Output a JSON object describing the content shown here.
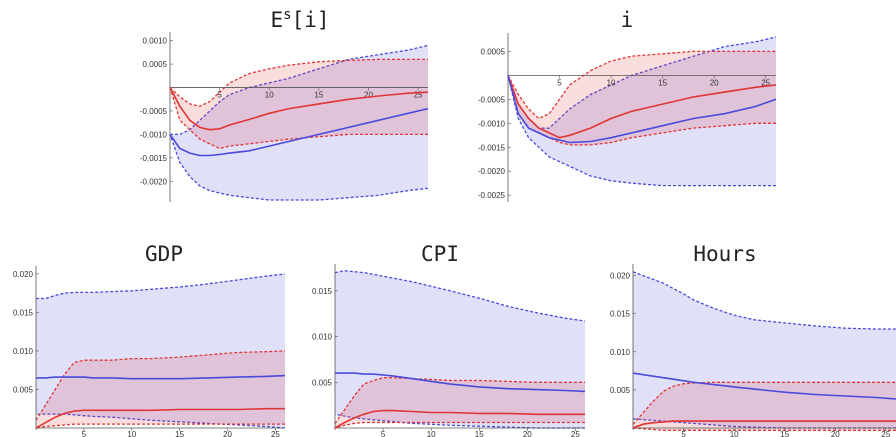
{
  "chart_data": [
    {
      "type": "line",
      "title": "E",
      "title_sup": "s",
      "title_rest": "[i]",
      "xlabel": "",
      "ylabel": "",
      "xlim": [
        0,
        26
      ],
      "ylim": [
        -0.0024,
        0.0011
      ],
      "xticks": [
        5,
        10,
        15,
        20,
        25
      ],
      "yticks": [
        0.001,
        0.0005,
        -0.0005,
        -0.001,
        -0.0015,
        -0.002
      ],
      "ytick_labels": [
        "0.0010",
        "0.0005",
        "-0.0005",
        "-0.0010",
        "-0.0015",
        "-0.0020"
      ],
      "x": [
        0,
        1,
        2,
        3,
        4,
        5,
        6,
        8,
        10,
        12,
        15,
        18,
        21,
        24,
        26
      ],
      "series": [
        {
          "color": "#e03535",
          "values": [
            0,
            -0.0004,
            -0.0007,
            -0.00085,
            -0.0009,
            -0.00088,
            -0.0008,
            -0.00068,
            -0.00055,
            -0.00045,
            -0.00035,
            -0.00025,
            -0.00018,
            -0.00012,
            -0.0001
          ],
          "band_upper": [
            0,
            -0.0002,
            -0.00035,
            -0.0004,
            -0.0003,
            -0.0001,
            0.0001,
            0.0003,
            0.0004,
            0.00048,
            0.00055,
            0.00058,
            0.0006,
            0.0006,
            0.0006
          ],
          "band_lower": [
            0,
            -0.0007,
            -0.0009,
            -0.0011,
            -0.0012,
            -0.0013,
            -0.00125,
            -0.0012,
            -0.00115,
            -0.0011,
            -0.00105,
            -0.001,
            -0.001,
            -0.001,
            -0.001
          ]
        },
        {
          "color": "#4a4adb",
          "values": [
            -0.001,
            -0.0013,
            -0.0014,
            -0.00145,
            -0.00145,
            -0.00143,
            -0.0014,
            -0.00135,
            -0.00125,
            -0.00115,
            -0.001,
            -0.00085,
            -0.0007,
            -0.00055,
            -0.00045
          ],
          "band_upper": [
            -0.001,
            -0.001,
            -0.0009,
            -0.0007,
            -0.0005,
            -0.0003,
            -0.00015,
            0,
            0.0001,
            0.0002,
            0.0004,
            0.0006,
            0.0007,
            0.0008,
            0.0009
          ],
          "band_lower": [
            -0.001,
            -0.0016,
            -0.0019,
            -0.0021,
            -0.0022,
            -0.00225,
            -0.0023,
            -0.00235,
            -0.0024,
            -0.0024,
            -0.0024,
            -0.00235,
            -0.0023,
            -0.0022,
            -0.00215
          ]
        }
      ]
    },
    {
      "type": "line",
      "title": "i",
      "xlabel": "",
      "ylabel": "",
      "xlim": [
        0,
        26
      ],
      "ylim": [
        -0.0026,
        0.0008
      ],
      "xticks": [
        5,
        10,
        15,
        20,
        25
      ],
      "yticks": [
        0.0005,
        -0.0005,
        -0.001,
        -0.0015,
        -0.002,
        -0.0025
      ],
      "ytick_labels": [
        "0.0005",
        "-0.0005",
        "-0.0010",
        "-0.0015",
        "-0.0020",
        "-0.0025"
      ],
      "x": [
        0,
        1,
        2,
        3,
        4,
        5,
        6,
        8,
        10,
        12,
        15,
        18,
        21,
        24,
        26
      ],
      "series": [
        {
          "color": "#e03535",
          "values": [
            0,
            -0.0006,
            -0.0009,
            -0.0011,
            -0.0012,
            -0.0013,
            -0.00125,
            -0.0011,
            -0.0009,
            -0.00075,
            -0.0006,
            -0.00045,
            -0.00035,
            -0.00025,
            -0.0002
          ],
          "band_upper": [
            0,
            -0.0004,
            -0.0007,
            -0.0009,
            -0.0008,
            -0.0005,
            -0.0002,
            0.0001,
            0.0003,
            0.0004,
            0.00045,
            0.0005,
            0.0005,
            0.0005,
            0.0005
          ],
          "band_lower": [
            0,
            -0.0008,
            -0.0011,
            -0.0012,
            -0.0013,
            -0.0014,
            -0.00145,
            -0.00145,
            -0.0014,
            -0.0013,
            -0.0012,
            -0.0011,
            -0.00105,
            -0.001,
            -0.001
          ]
        },
        {
          "color": "#4a4adb",
          "values": [
            0,
            -0.0008,
            -0.0011,
            -0.0012,
            -0.0013,
            -0.00135,
            -0.0014,
            -0.00138,
            -0.0013,
            -0.0012,
            -0.00105,
            -0.0009,
            -0.0008,
            -0.00065,
            -0.0005
          ],
          "band_upper": [
            0,
            -0.0006,
            -0.0009,
            -0.0011,
            -0.0011,
            -0.0009,
            -0.0007,
            -0.0004,
            -0.0002,
            0,
            0.0002,
            0.0004,
            0.0006,
            0.0007,
            0.0008
          ],
          "band_lower": [
            0,
            -0.0009,
            -0.0013,
            -0.0015,
            -0.0017,
            -0.0018,
            -0.0019,
            -0.0021,
            -0.0022,
            -0.00225,
            -0.0023,
            -0.0023,
            -0.0023,
            -0.0023,
            -0.0023
          ]
        }
      ]
    },
    {
      "type": "line",
      "title": "GDP",
      "xlabel": "",
      "ylabel": "",
      "xlim": [
        0,
        26
      ],
      "ylim": [
        0,
        0.0205
      ],
      "xticks": [
        5,
        10,
        15,
        20,
        25
      ],
      "yticks": [
        0.02,
        0.015,
        0.01,
        0.005
      ],
      "ytick_labels": [
        "0.020",
        "0.015",
        "0.010",
        "0.005"
      ],
      "x": [
        0,
        1,
        2,
        3,
        4,
        5,
        6,
        8,
        10,
        12,
        15,
        18,
        21,
        24,
        26
      ],
      "series": [
        {
          "color": "#e03535",
          "values": [
            0,
            0.0007,
            0.0014,
            0.0019,
            0.0022,
            0.0023,
            0.0023,
            0.0023,
            0.0023,
            0.0023,
            0.0024,
            0.0024,
            0.0024,
            0.0025,
            0.0025
          ],
          "band_upper": [
            0.001,
            0.003,
            0.005,
            0.007,
            0.0085,
            0.0088,
            0.0088,
            0.0088,
            0.009,
            0.009,
            0.0092,
            0.0095,
            0.0098,
            0.0099,
            0.01
          ],
          "band_lower": [
            0,
            0.0002,
            0.0003,
            0.0004,
            0.0005,
            0.0005,
            0.0005,
            0.0005,
            0.0005,
            0.0005,
            0.0005,
            0.0005,
            0.0005,
            0.0005,
            0.0005
          ]
        },
        {
          "color": "#4a4adb",
          "values": [
            0.0065,
            0.0065,
            0.0066,
            0.0066,
            0.0066,
            0.0066,
            0.0065,
            0.0065,
            0.0064,
            0.0064,
            0.0064,
            0.0065,
            0.0066,
            0.0067,
            0.0068
          ],
          "band_upper": [
            0.0168,
            0.0168,
            0.0172,
            0.0175,
            0.0176,
            0.0176,
            0.0176,
            0.0177,
            0.0178,
            0.018,
            0.0183,
            0.0187,
            0.0192,
            0.0197,
            0.02
          ],
          "band_lower": [
            0.0018,
            0.0018,
            0.0018,
            0.0018,
            0.0017,
            0.0016,
            0.0015,
            0.0014,
            0.0012,
            0.001,
            0.0008,
            0.0006,
            0.0004,
            0.0002,
            0
          ]
        }
      ]
    },
    {
      "type": "line",
      "title": "CPI",
      "xlabel": "",
      "ylabel": "",
      "xlim": [
        0,
        26
      ],
      "ylim": [
        0,
        0.0175
      ],
      "xticks": [
        5,
        10,
        15,
        20,
        25
      ],
      "yticks": [
        0.015,
        0.01,
        0.005
      ],
      "ytick_labels": [
        "0.015",
        "0.010",
        "0.005"
      ],
      "x": [
        0,
        1,
        2,
        3,
        4,
        5,
        6,
        8,
        10,
        12,
        15,
        18,
        21,
        24,
        26
      ],
      "series": [
        {
          "color": "#e03535",
          "values": [
            0,
            0.0006,
            0.0011,
            0.0015,
            0.0018,
            0.0019,
            0.0019,
            0.0018,
            0.0017,
            0.0017,
            0.0016,
            0.0016,
            0.0015,
            0.0015,
            0.0015
          ],
          "band_upper": [
            0.0005,
            0.002,
            0.0035,
            0.0048,
            0.0052,
            0.0055,
            0.0055,
            0.0054,
            0.0053,
            0.0052,
            0.0052,
            0.0051,
            0.005,
            0.005,
            0.005
          ],
          "band_lower": [
            0,
            0.0003,
            0.0005,
            0.0006,
            0.0006,
            0.0006,
            0.0006,
            0.0006,
            0.0006,
            0.0006,
            0.0006,
            0.0006,
            0.0006,
            0.0006,
            0.0006
          ]
        },
        {
          "color": "#4a4adb",
          "values": [
            0.006,
            0.006,
            0.006,
            0.0059,
            0.0059,
            0.0058,
            0.0057,
            0.0054,
            0.0051,
            0.0048,
            0.0045,
            0.0043,
            0.0042,
            0.0041,
            0.004
          ],
          "band_upper": [
            0.017,
            0.0172,
            0.0171,
            0.017,
            0.0168,
            0.0166,
            0.0164,
            0.016,
            0.0155,
            0.015,
            0.0142,
            0.0133,
            0.0126,
            0.012,
            0.0117
          ],
          "band_lower": [
            0.0015,
            0.0013,
            0.0011,
            0.001,
            0.0009,
            0.0008,
            0.0007,
            0.0005,
            0.0004,
            0.0003,
            0.0002,
            0.0001,
            0,
            0,
            0
          ]
        }
      ]
    },
    {
      "type": "line",
      "title": "Hours",
      "xlabel": "",
      "ylabel": "",
      "xlim": [
        0,
        26
      ],
      "ylim": [
        0,
        0.021
      ],
      "xticks": [
        5,
        10,
        15,
        20,
        25
      ],
      "yticks": [
        0.02,
        0.015,
        0.01,
        0.005
      ],
      "ytick_labels": [
        "0.020",
        "0.015",
        "0.010",
        "0.005"
      ],
      "x": [
        0,
        1,
        2,
        3,
        4,
        5,
        6,
        8,
        10,
        12,
        15,
        18,
        21,
        24,
        26
      ],
      "series": [
        {
          "color": "#e03535",
          "values": [
            0,
            0.0005,
            0.0007,
            0.0008,
            0.0009,
            0.0009,
            0.0009,
            0.0009,
            0.0009,
            0.0009,
            0.0009,
            0.0009,
            0.0009,
            0.0009,
            0.0009
          ],
          "band_upper": [
            0.0005,
            0.002,
            0.0035,
            0.0048,
            0.0055,
            0.0058,
            0.0059,
            0.006,
            0.006,
            0.006,
            0.006,
            0.006,
            0.006,
            0.006,
            0.006
          ],
          "band_lower": [
            0,
            -0.0001,
            -0.0002,
            -0.0003,
            -0.0003,
            -0.0003,
            -0.0003,
            -0.0003,
            -0.0003,
            -0.0003,
            -0.0003,
            -0.0003,
            -0.0003,
            -0.0003,
            -0.0003
          ]
        },
        {
          "color": "#4a4adb",
          "values": [
            0.0072,
            0.007,
            0.0068,
            0.0066,
            0.0064,
            0.0062,
            0.006,
            0.0057,
            0.0054,
            0.0051,
            0.0047,
            0.0044,
            0.0042,
            0.004,
            0.0038
          ],
          "band_upper": [
            0.0205,
            0.02,
            0.0195,
            0.019,
            0.0183,
            0.0176,
            0.0168,
            0.0157,
            0.0148,
            0.0142,
            0.0138,
            0.0134,
            0.0131,
            0.013,
            0.013
          ],
          "band_lower": [
            0.0012,
            0.0011,
            0.001,
            0.0009,
            0.0008,
            0.0007,
            0.0006,
            0.0004,
            0.0002,
            0.0001,
            0,
            0,
            0,
            0,
            0
          ]
        }
      ]
    }
  ]
}
